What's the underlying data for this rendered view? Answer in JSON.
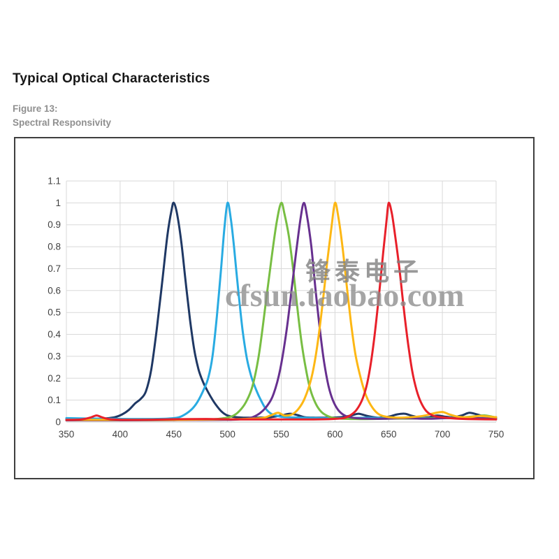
{
  "header": {
    "title": "Typical Optical Characteristics",
    "figure_label": "Figure 13:",
    "figure_caption": "Spectral Responsivity"
  },
  "watermark": {
    "line1": "锋泰电子",
    "line2": "cfsun.taobao.com",
    "color": "#8c8c8c"
  },
  "colors": {
    "grid": "#d9d9d9",
    "axis_text": "#404040",
    "box_border": "#3f3f3f"
  },
  "chart_data": {
    "type": "line",
    "title": "Spectral Responsivity",
    "xlabel": "",
    "ylabel": "",
    "xlim": [
      350,
      750
    ],
    "ylim": [
      0,
      1.1
    ],
    "grid": true,
    "legend": "none",
    "x_ticks": [
      {
        "label": "350",
        "value": 350
      },
      {
        "label": "400",
        "value": 400
      },
      {
        "label": "450",
        "value": 450
      },
      {
        "label": "500",
        "value": 500
      },
      {
        "label": "550",
        "value": 550
      },
      {
        "label": "600",
        "value": 600
      },
      {
        "label": "650",
        "value": 650
      },
      {
        "label": "700",
        "value": 700
      },
      {
        "label": "750",
        "value": 750
      }
    ],
    "y_ticks": [
      {
        "label": "0",
        "value": 0
      },
      {
        "label": "0.1",
        "value": 0.1
      },
      {
        "label": "0.2",
        "value": 0.2
      },
      {
        "label": "0.3",
        "value": 0.3
      },
      {
        "label": "0.4",
        "value": 0.4
      },
      {
        "label": "0.5",
        "value": 0.5
      },
      {
        "label": "0.6",
        "value": 0.6
      },
      {
        "label": "0.7",
        "value": 0.7
      },
      {
        "label": "0.8",
        "value": 0.8
      },
      {
        "label": "0.9",
        "value": 0.9
      },
      {
        "label": "1",
        "value": 1
      },
      {
        "label": "1.1",
        "value": 1.1
      }
    ],
    "series": [
      {
        "name": "peak-450nm-navy",
        "peak_nm": 450,
        "color": "#1f3864",
        "points": [
          [
            350,
            0.012
          ],
          [
            362,
            0.012
          ],
          [
            375,
            0.013
          ],
          [
            385,
            0.016
          ],
          [
            395,
            0.022
          ],
          [
            402,
            0.035
          ],
          [
            408,
            0.055
          ],
          [
            414,
            0.085
          ],
          [
            419,
            0.105
          ],
          [
            424,
            0.14
          ],
          [
            429,
            0.24
          ],
          [
            434,
            0.42
          ],
          [
            439,
            0.63
          ],
          [
            444,
            0.85
          ],
          [
            448,
            0.97
          ],
          [
            450,
            1.0
          ],
          [
            453,
            0.95
          ],
          [
            457,
            0.82
          ],
          [
            461,
            0.64
          ],
          [
            465,
            0.47
          ],
          [
            469,
            0.33
          ],
          [
            473,
            0.24
          ],
          [
            477,
            0.185
          ],
          [
            481,
            0.145
          ],
          [
            485,
            0.11
          ],
          [
            489,
            0.08
          ],
          [
            494,
            0.05
          ],
          [
            499,
            0.032
          ],
          [
            505,
            0.024
          ],
          [
            515,
            0.02
          ],
          [
            528,
            0.02
          ],
          [
            540,
            0.022
          ],
          [
            550,
            0.03
          ],
          [
            558,
            0.038
          ],
          [
            565,
            0.032
          ],
          [
            572,
            0.022
          ],
          [
            582,
            0.02
          ],
          [
            592,
            0.02
          ],
          [
            605,
            0.022
          ],
          [
            615,
            0.03
          ],
          [
            622,
            0.038
          ],
          [
            630,
            0.028
          ],
          [
            640,
            0.02
          ],
          [
            650,
            0.025
          ],
          [
            658,
            0.035
          ],
          [
            665,
            0.038
          ],
          [
            672,
            0.028
          ],
          [
            680,
            0.02
          ],
          [
            688,
            0.022
          ],
          [
            695,
            0.03
          ],
          [
            702,
            0.025
          ],
          [
            710,
            0.022
          ],
          [
            718,
            0.03
          ],
          [
            725,
            0.042
          ],
          [
            732,
            0.035
          ],
          [
            740,
            0.025
          ],
          [
            750,
            0.022
          ]
        ]
      },
      {
        "name": "peak-500nm-cyan",
        "peak_nm": 500,
        "color": "#29abe2",
        "points": [
          [
            350,
            0.018
          ],
          [
            370,
            0.016
          ],
          [
            390,
            0.015
          ],
          [
            410,
            0.014
          ],
          [
            430,
            0.014
          ],
          [
            445,
            0.016
          ],
          [
            455,
            0.022
          ],
          [
            462,
            0.04
          ],
          [
            468,
            0.065
          ],
          [
            473,
            0.1
          ],
          [
            478,
            0.15
          ],
          [
            482,
            0.2
          ],
          [
            486,
            0.3
          ],
          [
            490,
            0.48
          ],
          [
            494,
            0.7
          ],
          [
            497,
            0.88
          ],
          [
            500,
            1.0
          ],
          [
            503,
            0.93
          ],
          [
            506,
            0.8
          ],
          [
            510,
            0.6
          ],
          [
            514,
            0.42
          ],
          [
            518,
            0.29
          ],
          [
            522,
            0.21
          ],
          [
            526,
            0.155
          ],
          [
            530,
            0.11
          ],
          [
            535,
            0.065
          ],
          [
            540,
            0.04
          ],
          [
            547,
            0.027
          ],
          [
            555,
            0.022
          ],
          [
            570,
            0.02
          ],
          [
            590,
            0.018
          ],
          [
            610,
            0.018
          ],
          [
            630,
            0.02
          ],
          [
            650,
            0.018
          ],
          [
            670,
            0.02
          ],
          [
            690,
            0.018
          ],
          [
            710,
            0.02
          ],
          [
            730,
            0.018
          ],
          [
            750,
            0.02
          ]
        ]
      },
      {
        "name": "peak-550nm-green",
        "peak_nm": 550,
        "color": "#78be43",
        "points": [
          [
            350,
            0.008
          ],
          [
            390,
            0.008
          ],
          [
            430,
            0.009
          ],
          [
            465,
            0.01
          ],
          [
            485,
            0.012
          ],
          [
            497,
            0.018
          ],
          [
            505,
            0.028
          ],
          [
            511,
            0.05
          ],
          [
            517,
            0.09
          ],
          [
            523,
            0.16
          ],
          [
            529,
            0.3
          ],
          [
            535,
            0.52
          ],
          [
            541,
            0.75
          ],
          [
            546,
            0.92
          ],
          [
            550,
            1.0
          ],
          [
            553,
            0.95
          ],
          [
            557,
            0.85
          ],
          [
            561,
            0.7
          ],
          [
            565,
            0.52
          ],
          [
            569,
            0.36
          ],
          [
            573,
            0.24
          ],
          [
            577,
            0.15
          ],
          [
            582,
            0.085
          ],
          [
            587,
            0.048
          ],
          [
            593,
            0.028
          ],
          [
            600,
            0.018
          ],
          [
            615,
            0.014
          ],
          [
            635,
            0.014
          ],
          [
            655,
            0.016
          ],
          [
            675,
            0.016
          ],
          [
            695,
            0.018
          ],
          [
            715,
            0.02
          ],
          [
            730,
            0.026
          ],
          [
            740,
            0.03
          ],
          [
            750,
            0.02
          ]
        ]
      },
      {
        "name": "peak-570nm-purple",
        "peak_nm": 570,
        "color": "#67308f",
        "points": [
          [
            350,
            0.008
          ],
          [
            400,
            0.008
          ],
          [
            450,
            0.009
          ],
          [
            490,
            0.01
          ],
          [
            510,
            0.012
          ],
          [
            522,
            0.02
          ],
          [
            530,
            0.04
          ],
          [
            537,
            0.075
          ],
          [
            543,
            0.13
          ],
          [
            549,
            0.24
          ],
          [
            555,
            0.42
          ],
          [
            560,
            0.62
          ],
          [
            564,
            0.78
          ],
          [
            568,
            0.93
          ],
          [
            571,
            1.0
          ],
          [
            574,
            0.94
          ],
          [
            578,
            0.8
          ],
          [
            582,
            0.6
          ],
          [
            586,
            0.42
          ],
          [
            590,
            0.27
          ],
          [
            594,
            0.165
          ],
          [
            598,
            0.1
          ],
          [
            603,
            0.055
          ],
          [
            609,
            0.03
          ],
          [
            616,
            0.02
          ],
          [
            626,
            0.016
          ],
          [
            645,
            0.015
          ],
          [
            665,
            0.018
          ],
          [
            685,
            0.015
          ],
          [
            705,
            0.018
          ],
          [
            725,
            0.018
          ],
          [
            750,
            0.015
          ]
        ]
      },
      {
        "name": "peak-600nm-amber",
        "peak_nm": 600,
        "color": "#fdb714",
        "points": [
          [
            350,
            0.01
          ],
          [
            400,
            0.01
          ],
          [
            450,
            0.01
          ],
          [
            490,
            0.012
          ],
          [
            515,
            0.014
          ],
          [
            532,
            0.018
          ],
          [
            540,
            0.03
          ],
          [
            547,
            0.042
          ],
          [
            553,
            0.03
          ],
          [
            560,
            0.035
          ],
          [
            566,
            0.06
          ],
          [
            572,
            0.11
          ],
          [
            578,
            0.2
          ],
          [
            583,
            0.33
          ],
          [
            588,
            0.52
          ],
          [
            593,
            0.74
          ],
          [
            597,
            0.9
          ],
          [
            600,
            1.0
          ],
          [
            603,
            0.94
          ],
          [
            607,
            0.8
          ],
          [
            611,
            0.62
          ],
          [
            615,
            0.45
          ],
          [
            619,
            0.31
          ],
          [
            624,
            0.2
          ],
          [
            629,
            0.12
          ],
          [
            635,
            0.065
          ],
          [
            641,
            0.035
          ],
          [
            648,
            0.024
          ],
          [
            658,
            0.02
          ],
          [
            670,
            0.022
          ],
          [
            682,
            0.028
          ],
          [
            692,
            0.04
          ],
          [
            700,
            0.046
          ],
          [
            707,
            0.034
          ],
          [
            715,
            0.024
          ],
          [
            725,
            0.022
          ],
          [
            735,
            0.028
          ],
          [
            745,
            0.024
          ],
          [
            750,
            0.022
          ]
        ]
      },
      {
        "name": "peak-650nm-red",
        "peak_nm": 650,
        "color": "#e8202a",
        "points": [
          [
            350,
            0.01
          ],
          [
            364,
            0.012
          ],
          [
            372,
            0.02
          ],
          [
            378,
            0.03
          ],
          [
            383,
            0.022
          ],
          [
            390,
            0.013
          ],
          [
            405,
            0.01
          ],
          [
            430,
            0.011
          ],
          [
            455,
            0.013
          ],
          [
            480,
            0.014
          ],
          [
            505,
            0.012
          ],
          [
            530,
            0.012
          ],
          [
            555,
            0.012
          ],
          [
            580,
            0.012
          ],
          [
            598,
            0.014
          ],
          [
            608,
            0.018
          ],
          [
            614,
            0.03
          ],
          [
            620,
            0.055
          ],
          [
            626,
            0.11
          ],
          [
            631,
            0.2
          ],
          [
            636,
            0.36
          ],
          [
            641,
            0.58
          ],
          [
            645,
            0.78
          ],
          [
            648,
            0.92
          ],
          [
            650,
            1.0
          ],
          [
            653,
            0.95
          ],
          [
            656,
            0.85
          ],
          [
            660,
            0.7
          ],
          [
            664,
            0.52
          ],
          [
            668,
            0.36
          ],
          [
            672,
            0.23
          ],
          [
            676,
            0.145
          ],
          [
            680,
            0.09
          ],
          [
            685,
            0.05
          ],
          [
            691,
            0.03
          ],
          [
            699,
            0.022
          ],
          [
            712,
            0.016
          ],
          [
            730,
            0.013
          ],
          [
            750,
            0.012
          ]
        ]
      }
    ]
  }
}
